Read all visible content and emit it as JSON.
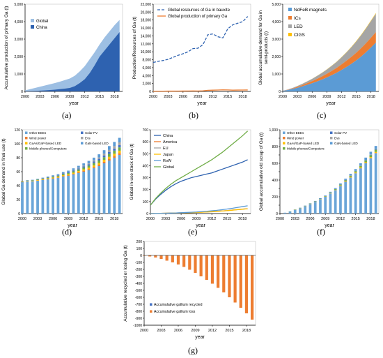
{
  "panels": [
    {
      "id": "a",
      "label": "(a)"
    },
    {
      "id": "b",
      "label": "(b)"
    },
    {
      "id": "c",
      "label": "(c)"
    },
    {
      "id": "d",
      "label": "(d)"
    },
    {
      "id": "e",
      "label": "(e)"
    },
    {
      "id": "f",
      "label": "(f)"
    },
    {
      "id": "g",
      "label": "(g)"
    }
  ],
  "colors": {
    "global_light": "#9dbfe3",
    "china_dark": "#2e62b0",
    "bauxite_blue": "#2e62b0",
    "primary_orange": "#ed7d31",
    "ndfeb": "#5b9bd5",
    "ics": "#ed7d31",
    "led": "#a5a5a5",
    "cigs": "#ffc000",
    "other_eees": "#6aa5d8",
    "wind_power": "#ed7d31",
    "gaas_led": "#ffc000",
    "mobile": "#70ad47",
    "solar_pv": "#4472c4",
    "evs": "#a5a5a5",
    "gan_led": "#5b9bd5",
    "china": "#2e62b0",
    "america": "#ed7d31",
    "eu": "#a5a5a5",
    "japan": "#ffc000",
    "row": "#5b9bd5",
    "global": "#70ad47",
    "recycled": "#4472c4",
    "loss": "#ed7d31"
  },
  "chart_data": [
    {
      "panel": "a",
      "type": "area",
      "xlabel": "year",
      "ylabel": "Accumulative production of primary Ga (t)",
      "xticks": [
        2000,
        2003,
        2006,
        2009,
        2012,
        2015,
        2018
      ],
      "yticks": [
        0,
        1000,
        2000,
        3000,
        4000,
        5000
      ],
      "ylim": [
        0,
        5000
      ],
      "x": [
        2000,
        2001,
        2002,
        2003,
        2004,
        2005,
        2006,
        2007,
        2008,
        2009,
        2010,
        2011,
        2012,
        2013,
        2014,
        2015,
        2016,
        2017,
        2018,
        2019
      ],
      "series": [
        {
          "name": "Global",
          "values": [
            60,
            130,
            200,
            270,
            340,
            410,
            480,
            560,
            650,
            740,
            900,
            1150,
            1450,
            1850,
            2250,
            2700,
            3100,
            3450,
            3800,
            4100
          ]
        },
        {
          "name": "China",
          "values": [
            10,
            20,
            30,
            45,
            60,
            80,
            100,
            130,
            160,
            200,
            300,
            480,
            700,
            1050,
            1500,
            2000,
            2350,
            2700,
            3050,
            3400
          ]
        }
      ],
      "legend": "top-left"
    },
    {
      "panel": "b",
      "type": "line",
      "xlabel": "year",
      "ylabel": "Production/Resources of Ga (t)",
      "xticks": [
        2000,
        2003,
        2006,
        2009,
        2012,
        2015,
        2018
      ],
      "yticks": [
        0,
        2000,
        4000,
        6000,
        8000,
        10000,
        12000,
        14000,
        16000,
        18000,
        20000,
        22000
      ],
      "ylim": [
        0,
        22000
      ],
      "x": [
        2000,
        2001,
        2002,
        2003,
        2004,
        2005,
        2006,
        2007,
        2008,
        2009,
        2010,
        2011,
        2012,
        2013,
        2014,
        2015,
        2016,
        2017,
        2018,
        2019
      ],
      "series": [
        {
          "name": "Global resources of Ga in bauxite",
          "values": [
            7300,
            7600,
            7800,
            8100,
            8600,
            9100,
            9500,
            10000,
            10800,
            10900,
            11800,
            14300,
            14500,
            13800,
            13500,
            15800,
            16800,
            17200,
            17600,
            18900
          ],
          "style": "dashed"
        },
        {
          "name": "Global production of primary Ga",
          "values": [
            60,
            65,
            70,
            75,
            80,
            90,
            100,
            110,
            120,
            110,
            150,
            280,
            320,
            350,
            400,
            380,
            320,
            340,
            350,
            360
          ],
          "style": "solid"
        }
      ],
      "legend": "top-left"
    },
    {
      "panel": "c",
      "type": "area",
      "xlabel": "year",
      "ylabel": "Global accumulative demand for Ga in semi-products (t)",
      "xticks": [
        2000,
        2003,
        2006,
        2009,
        2012,
        2015,
        2018
      ],
      "yticks": [
        0,
        1000,
        2000,
        3000,
        4000,
        5000
      ],
      "ylim": [
        0,
        5000
      ],
      "x": [
        2000,
        2001,
        2002,
        2003,
        2004,
        2005,
        2006,
        2007,
        2008,
        2009,
        2010,
        2011,
        2012,
        2013,
        2014,
        2015,
        2016,
        2017,
        2018,
        2019
      ],
      "stacked": true,
      "series": [
        {
          "name": "NdFeB magnets",
          "values": [
            30,
            80,
            140,
            210,
            290,
            380,
            470,
            570,
            680,
            800,
            930,
            1070,
            1230,
            1400,
            1580,
            1780,
            2000,
            2250,
            2520,
            2800
          ]
        },
        {
          "name": "ICs",
          "values": [
            5,
            15,
            30,
            50,
            70,
            95,
            120,
            150,
            180,
            210,
            245,
            280,
            320,
            360,
            400,
            440,
            480,
            520,
            560,
            600
          ]
        },
        {
          "name": "LED",
          "values": [
            5,
            15,
            30,
            50,
            75,
            100,
            130,
            165,
            200,
            240,
            290,
            340,
            400,
            470,
            550,
            640,
            740,
            840,
            950,
            1050
          ]
        },
        {
          "name": "CIGS",
          "values": [
            0,
            1,
            2,
            3,
            4,
            5,
            7,
            9,
            11,
            13,
            15,
            17,
            19,
            22,
            25,
            28,
            31,
            34,
            37,
            40
          ]
        }
      ],
      "legend": "top-left"
    },
    {
      "panel": "d",
      "type": "bar",
      "xlabel": "year",
      "ylabel": "Global Ga demand in final use (t)",
      "xticks": [
        2000,
        2003,
        2006,
        2009,
        2012,
        2015,
        2018
      ],
      "yticks": [
        0,
        20,
        40,
        60,
        80,
        100,
        120
      ],
      "ylim": [
        0,
        120
      ],
      "categories": [
        2000,
        2001,
        2002,
        2003,
        2004,
        2005,
        2006,
        2007,
        2008,
        2009,
        2010,
        2011,
        2012,
        2013,
        2014,
        2015,
        2016,
        2017,
        2018,
        2019
      ],
      "stacked": true,
      "series": [
        {
          "name": "Other EEEs",
          "values": [
            45,
            46,
            46,
            47,
            48,
            49,
            50,
            51,
            53,
            54,
            56,
            58,
            60,
            62,
            65,
            68,
            72,
            76,
            80,
            84
          ]
        },
        {
          "name": "Wind power",
          "values": [
            0.2,
            0.2,
            0.3,
            0.3,
            0.4,
            0.5,
            0.6,
            0.7,
            0.8,
            0.9,
            1.0,
            1.2,
            1.4,
            1.6,
            1.8,
            2.0,
            2.2,
            2.4,
            2.6,
            2.8
          ]
        },
        {
          "name": "GaAs/GaP-based LED",
          "values": [
            0.5,
            0.5,
            0.6,
            0.7,
            0.8,
            0.9,
            1.0,
            1.1,
            1.2,
            1.3,
            1.5,
            1.7,
            1.9,
            2.1,
            2.3,
            2.5,
            2.7,
            2.9,
            3.1,
            3.3
          ]
        },
        {
          "name": "Mobile phones/Computers",
          "values": [
            0.5,
            0.6,
            0.7,
            0.8,
            0.9,
            1.0,
            1.2,
            1.4,
            1.6,
            1.8,
            2.0,
            2.3,
            2.6,
            2.9,
            3.2,
            3.5,
            3.8,
            4.1,
            4.4,
            4.7
          ]
        },
        {
          "name": "Solar PV",
          "values": [
            0.2,
            0.3,
            0.3,
            0.4,
            0.5,
            0.6,
            0.7,
            0.8,
            1.0,
            1.2,
            1.4,
            1.6,
            1.8,
            2.0,
            2.2,
            2.4,
            2.6,
            2.8,
            3.0,
            3.2
          ]
        },
        {
          "name": "Evs",
          "values": [
            0,
            0,
            0,
            0,
            0,
            0,
            0.1,
            0.1,
            0.2,
            0.3,
            0.5,
            0.8,
            1.0,
            1.3,
            1.6,
            2.0,
            2.5,
            3.0,
            3.5,
            4.0
          ]
        },
        {
          "name": "GaN-based LED",
          "values": [
            0.3,
            0.4,
            0.5,
            0.6,
            0.8,
            1.0,
            1.2,
            1.4,
            1.7,
            2.0,
            2.4,
            2.8,
            3.2,
            3.6,
            4.0,
            4.5,
            5.0,
            5.5,
            6.0,
            6.5
          ]
        }
      ],
      "legend": "top-left"
    },
    {
      "panel": "e",
      "type": "line",
      "xlabel": "year",
      "ylabel": "Global in-use stock of Ga (t)",
      "xticks": [
        2000,
        2003,
        2006,
        2009,
        2012,
        2015,
        2018
      ],
      "yticks": [
        0,
        100,
        200,
        300,
        400,
        500,
        600,
        700
      ],
      "ylim": [
        0,
        700
      ],
      "x": [
        2000,
        2001,
        2002,
        2003,
        2004,
        2005,
        2006,
        2007,
        2008,
        2009,
        2010,
        2011,
        2012,
        2013,
        2014,
        2015,
        2016,
        2017,
        2018,
        2019
      ],
      "series": [
        {
          "name": "China",
          "values": [
            70,
            120,
            160,
            195,
            225,
            250,
            270,
            285,
            300,
            310,
            320,
            330,
            340,
            355,
            370,
            385,
            400,
            415,
            430,
            450
          ]
        },
        {
          "name": "America",
          "values": [
            0,
            1,
            2,
            3,
            4,
            5,
            6,
            7,
            8,
            10,
            12,
            14,
            16,
            19,
            22,
            25,
            29,
            33,
            37,
            40
          ]
        },
        {
          "name": "EU",
          "values": [
            0,
            1,
            2,
            3,
            4,
            5,
            6,
            7,
            8,
            10,
            12,
            14,
            16,
            19,
            22,
            25,
            29,
            33,
            37,
            40
          ]
        },
        {
          "name": "Japan",
          "values": [
            0,
            1,
            2,
            3,
            4,
            5,
            6,
            7,
            8,
            9,
            11,
            13,
            15,
            18,
            21,
            24,
            28,
            32,
            36,
            40
          ]
        },
        {
          "name": "RoW",
          "values": [
            0,
            1,
            2,
            3,
            4,
            5,
            7,
            9,
            11,
            13,
            16,
            19,
            23,
            27,
            32,
            38,
            44,
            51,
            58,
            65
          ]
        },
        {
          "name": "Global",
          "values": [
            70,
            125,
            170,
            210,
            245,
            275,
            300,
            325,
            350,
            375,
            400,
            425,
            450,
            480,
            510,
            545,
            580,
            615,
            650,
            690
          ]
        }
      ],
      "legend": "top-left"
    },
    {
      "panel": "f",
      "type": "bar",
      "xlabel": "year",
      "ylabel": "Global accumulative old scrap of Ga (t)",
      "xticks": [
        2000,
        2003,
        2006,
        2009,
        2012,
        2015,
        2018
      ],
      "yticks": [
        0,
        100,
        200,
        300,
        400,
        500,
        600,
        700,
        800,
        900,
        1000
      ],
      "ylim": [
        0,
        1000
      ],
      "categories": [
        2000,
        2001,
        2002,
        2003,
        2004,
        2005,
        2006,
        2007,
        2008,
        2009,
        2010,
        2011,
        2012,
        2013,
        2014,
        2015,
        2016,
        2017,
        2018,
        2019
      ],
      "stacked": true,
      "series": [
        {
          "name": "Other EEEs",
          "values": [
            0,
            10,
            25,
            45,
            65,
            90,
            115,
            140,
            170,
            200,
            240,
            280,
            330,
            380,
            430,
            480,
            540,
            600,
            660,
            720
          ]
        },
        {
          "name": "Wind power",
          "values": [
            0,
            0,
            0,
            0,
            0,
            0,
            0,
            0,
            0,
            0,
            0,
            0,
            1,
            1,
            1,
            2,
            2,
            3,
            3,
            4
          ]
        },
        {
          "name": "GaAs/GaP-based LED",
          "values": [
            0,
            0,
            0,
            1,
            1,
            1,
            2,
            2,
            3,
            3,
            4,
            4,
            5,
            6,
            7,
            8,
            9,
            10,
            11,
            12
          ]
        },
        {
          "name": "Mobile phones/Computers",
          "values": [
            0,
            0,
            1,
            1,
            2,
            2,
            3,
            4,
            5,
            6,
            7,
            8,
            10,
            12,
            14,
            16,
            18,
            20,
            23,
            26
          ]
        },
        {
          "name": "Solar PV",
          "values": [
            0,
            0,
            0,
            0,
            0,
            0,
            0,
            1,
            1,
            1,
            1,
            2,
            2,
            2,
            3,
            3,
            4,
            4,
            5,
            5
          ]
        },
        {
          "name": "Evs",
          "values": [
            0,
            0,
            0,
            0,
            0,
            0,
            0,
            0,
            0,
            0,
            0,
            0,
            0,
            1,
            1,
            1,
            2,
            2,
            3,
            3
          ]
        },
        {
          "name": "GaN-based LED",
          "values": [
            0,
            0,
            0,
            1,
            1,
            2,
            3,
            4,
            5,
            6,
            8,
            10,
            12,
            15,
            18,
            21,
            25,
            29,
            33,
            37
          ]
        }
      ],
      "legend": "top-left"
    },
    {
      "panel": "g",
      "type": "bar",
      "xlabel": "year",
      "ylabel": "Accumulative recycled or losing Ga (t)",
      "xticks": [
        2000,
        2003,
        2006,
        2009,
        2012,
        2015,
        2018
      ],
      "yticks": [
        -1000,
        -900,
        -800,
        -700,
        -600,
        -500,
        -400,
        -300,
        -200,
        -100,
        0,
        100,
        200
      ],
      "ylim": [
        -1000,
        200
      ],
      "categories": [
        2000,
        2001,
        2002,
        2003,
        2004,
        2005,
        2006,
        2007,
        2008,
        2009,
        2010,
        2011,
        2012,
        2013,
        2014,
        2015,
        2016,
        2017,
        2018,
        2019
      ],
      "series": [
        {
          "name": "Accumulative gallium recycled",
          "values": [
            0,
            0,
            0,
            0,
            0,
            0,
            0,
            0,
            0,
            0,
            0,
            0,
            0,
            0,
            0,
            0,
            0,
            0,
            0,
            0
          ]
        },
        {
          "name": "Accumulative gallium loss",
          "values": [
            -5,
            -15,
            -30,
            -50,
            -75,
            -100,
            -130,
            -165,
            -205,
            -250,
            -300,
            -350,
            -405,
            -465,
            -530,
            -600,
            -675,
            -750,
            -830,
            -920
          ]
        }
      ],
      "legend": "bottom-left"
    }
  ]
}
